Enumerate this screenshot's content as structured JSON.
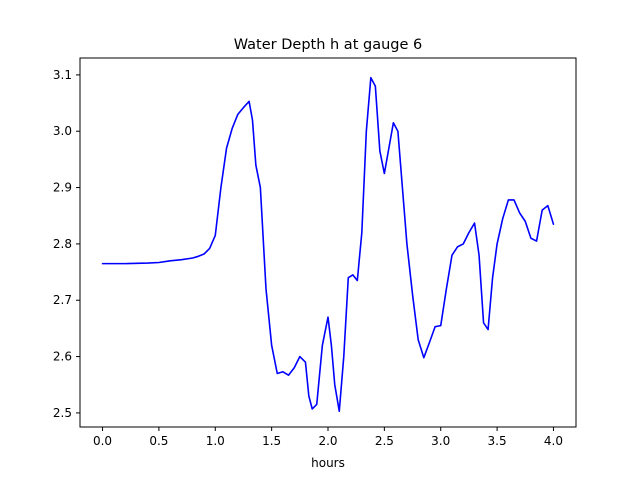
{
  "chart_data": {
    "type": "line",
    "title": "Water Depth h at gauge 6",
    "xlabel": "hours",
    "ylabel": "",
    "xlim": [
      -0.2,
      4.2
    ],
    "ylim": [
      2.475,
      3.13
    ],
    "grid": false,
    "legend": "none",
    "x_ticks": [
      0.0,
      0.5,
      1.0,
      1.5,
      2.0,
      2.5,
      3.0,
      3.5,
      4.0
    ],
    "x_tick_labels": [
      "0.0",
      "0.5",
      "1.0",
      "1.5",
      "2.0",
      "2.5",
      "3.0",
      "3.5",
      "4.0"
    ],
    "y_ticks": [
      2.5,
      2.6,
      2.7,
      2.8,
      2.9,
      3.0,
      3.1
    ],
    "y_tick_labels": [
      "2.5",
      "2.6",
      "2.7",
      "2.8",
      "2.9",
      "3.0",
      "3.1"
    ],
    "series": [
      {
        "color": "#0000ff",
        "x": [
          0.0,
          0.2,
          0.4,
          0.5,
          0.6,
          0.7,
          0.8,
          0.85,
          0.9,
          0.95,
          1.0,
          1.05,
          1.1,
          1.15,
          1.2,
          1.25,
          1.3,
          1.33,
          1.36,
          1.4,
          1.45,
          1.5,
          1.55,
          1.6,
          1.65,
          1.7,
          1.75,
          1.8,
          1.83,
          1.86,
          1.9,
          1.95,
          2.0,
          2.03,
          2.06,
          2.1,
          2.14,
          2.18,
          2.22,
          2.26,
          2.3,
          2.34,
          2.38,
          2.42,
          2.46,
          2.5,
          2.54,
          2.58,
          2.62,
          2.66,
          2.7,
          2.75,
          2.8,
          2.85,
          2.9,
          2.95,
          3.0,
          3.05,
          3.1,
          3.15,
          3.2,
          3.25,
          3.3,
          3.34,
          3.38,
          3.42,
          3.46,
          3.5,
          3.55,
          3.6,
          3.65,
          3.7,
          3.75,
          3.8,
          3.85,
          3.9,
          3.95,
          4.0
        ],
        "y": [
          2.765,
          2.765,
          2.766,
          2.767,
          2.77,
          2.772,
          2.775,
          2.778,
          2.782,
          2.792,
          2.815,
          2.9,
          2.97,
          3.005,
          3.03,
          3.042,
          3.053,
          3.02,
          2.94,
          2.9,
          2.72,
          2.62,
          2.57,
          2.573,
          2.567,
          2.58,
          2.6,
          2.59,
          2.53,
          2.507,
          2.515,
          2.62,
          2.67,
          2.62,
          2.55,
          2.503,
          2.6,
          2.74,
          2.745,
          2.735,
          2.82,
          3.0,
          3.095,
          3.08,
          2.965,
          2.925,
          2.97,
          3.015,
          3.0,
          2.9,
          2.8,
          2.71,
          2.63,
          2.598,
          2.625,
          2.653,
          2.655,
          2.72,
          2.78,
          2.795,
          2.8,
          2.82,
          2.837,
          2.78,
          2.66,
          2.648,
          2.74,
          2.8,
          2.845,
          2.878,
          2.878,
          2.855,
          2.84,
          2.81,
          2.805,
          2.86,
          2.868,
          2.835
        ]
      }
    ]
  }
}
